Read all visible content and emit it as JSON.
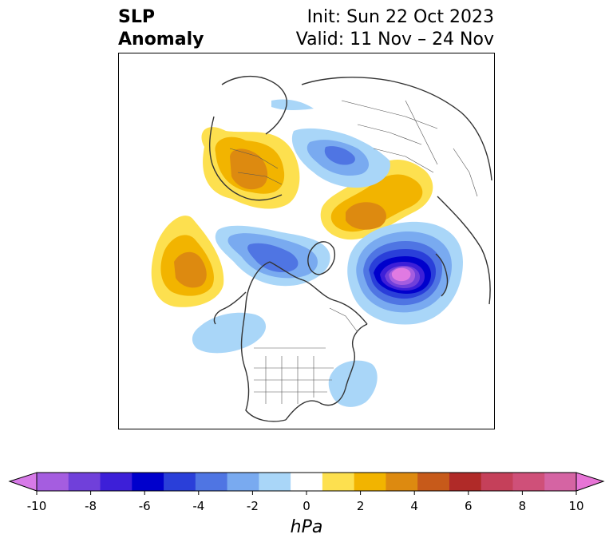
{
  "title": {
    "left_line1": "SLP",
    "left_line2": "Anomaly",
    "init": "Init: Sun 22 Oct 2023",
    "valid": "Valid: 11 Nov – 24 Nov"
  },
  "colorbar": {
    "unit_label": "hPa",
    "ticks": [
      "-10",
      "-8",
      "-6",
      "-4",
      "-2",
      "0",
      "2",
      "4",
      "6",
      "8",
      "10"
    ],
    "colors": [
      "#d77ae8",
      "#a55de0",
      "#7040da",
      "#3d1fd8",
      "#0000cc",
      "#2a3fd9",
      "#4f75e3",
      "#79aaf0",
      "#a9d6f8",
      "#ffffff",
      "#fde04f",
      "#f2b400",
      "#dd8a10",
      "#c75a1a",
      "#b02a28",
      "#c5405a",
      "#cf5079",
      "#d564a3",
      "#e774d6"
    ]
  },
  "colors": {
    "neg_max": "#e07ae2",
    "neg_strong": "#0000cc",
    "neg_weak": "#a9d6f8",
    "pos_weak": "#fde04f",
    "pos_mid": "#f2b400",
    "pos_strong": "#dd8a10",
    "land_lines": "#333333"
  }
}
